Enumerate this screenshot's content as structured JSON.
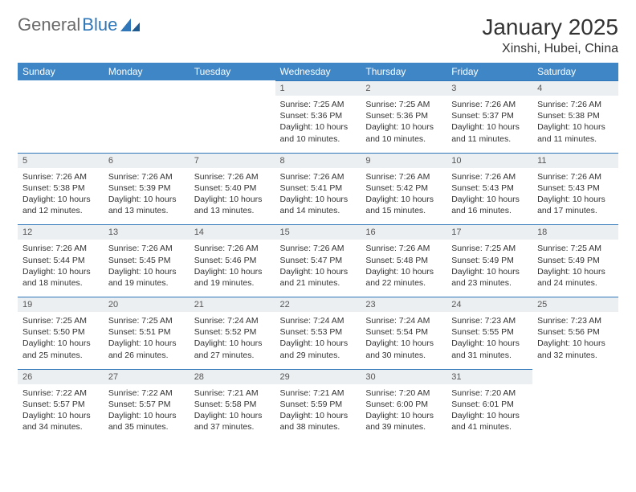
{
  "brand": {
    "name_a": "General",
    "name_b": "Blue"
  },
  "header": {
    "title": "January 2025",
    "location": "Xinshi, Hubei, China"
  },
  "colors": {
    "brand_gray": "#6a6a6a",
    "brand_blue": "#2f77b8",
    "dayhead_bg": "#3e86c6",
    "dayhead_fg": "#ffffff",
    "daynum_bg": "#eceff1",
    "daynum_fg": "#555555",
    "row_border": "#2f77b8",
    "text": "#333333",
    "background": "#ffffff"
  },
  "calendar": {
    "type": "table",
    "columns": [
      "Sunday",
      "Monday",
      "Tuesday",
      "Wednesday",
      "Thursday",
      "Friday",
      "Saturday"
    ],
    "weeks": [
      [
        null,
        null,
        null,
        {
          "n": "1",
          "sunrise": "7:25 AM",
          "sunset": "5:36 PM",
          "dlh": "10",
          "dlm": "10"
        },
        {
          "n": "2",
          "sunrise": "7:25 AM",
          "sunset": "5:36 PM",
          "dlh": "10",
          "dlm": "10"
        },
        {
          "n": "3",
          "sunrise": "7:26 AM",
          "sunset": "5:37 PM",
          "dlh": "10",
          "dlm": "11"
        },
        {
          "n": "4",
          "sunrise": "7:26 AM",
          "sunset": "5:38 PM",
          "dlh": "10",
          "dlm": "11"
        }
      ],
      [
        {
          "n": "5",
          "sunrise": "7:26 AM",
          "sunset": "5:38 PM",
          "dlh": "10",
          "dlm": "12"
        },
        {
          "n": "6",
          "sunrise": "7:26 AM",
          "sunset": "5:39 PM",
          "dlh": "10",
          "dlm": "13"
        },
        {
          "n": "7",
          "sunrise": "7:26 AM",
          "sunset": "5:40 PM",
          "dlh": "10",
          "dlm": "13"
        },
        {
          "n": "8",
          "sunrise": "7:26 AM",
          "sunset": "5:41 PM",
          "dlh": "10",
          "dlm": "14"
        },
        {
          "n": "9",
          "sunrise": "7:26 AM",
          "sunset": "5:42 PM",
          "dlh": "10",
          "dlm": "15"
        },
        {
          "n": "10",
          "sunrise": "7:26 AM",
          "sunset": "5:43 PM",
          "dlh": "10",
          "dlm": "16"
        },
        {
          "n": "11",
          "sunrise": "7:26 AM",
          "sunset": "5:43 PM",
          "dlh": "10",
          "dlm": "17"
        }
      ],
      [
        {
          "n": "12",
          "sunrise": "7:26 AM",
          "sunset": "5:44 PM",
          "dlh": "10",
          "dlm": "18"
        },
        {
          "n": "13",
          "sunrise": "7:26 AM",
          "sunset": "5:45 PM",
          "dlh": "10",
          "dlm": "19"
        },
        {
          "n": "14",
          "sunrise": "7:26 AM",
          "sunset": "5:46 PM",
          "dlh": "10",
          "dlm": "19"
        },
        {
          "n": "15",
          "sunrise": "7:26 AM",
          "sunset": "5:47 PM",
          "dlh": "10",
          "dlm": "21"
        },
        {
          "n": "16",
          "sunrise": "7:26 AM",
          "sunset": "5:48 PM",
          "dlh": "10",
          "dlm": "22"
        },
        {
          "n": "17",
          "sunrise": "7:25 AM",
          "sunset": "5:49 PM",
          "dlh": "10",
          "dlm": "23"
        },
        {
          "n": "18",
          "sunrise": "7:25 AM",
          "sunset": "5:49 PM",
          "dlh": "10",
          "dlm": "24"
        }
      ],
      [
        {
          "n": "19",
          "sunrise": "7:25 AM",
          "sunset": "5:50 PM",
          "dlh": "10",
          "dlm": "25"
        },
        {
          "n": "20",
          "sunrise": "7:25 AM",
          "sunset": "5:51 PM",
          "dlh": "10",
          "dlm": "26"
        },
        {
          "n": "21",
          "sunrise": "7:24 AM",
          "sunset": "5:52 PM",
          "dlh": "10",
          "dlm": "27"
        },
        {
          "n": "22",
          "sunrise": "7:24 AM",
          "sunset": "5:53 PM",
          "dlh": "10",
          "dlm": "29"
        },
        {
          "n": "23",
          "sunrise": "7:24 AM",
          "sunset": "5:54 PM",
          "dlh": "10",
          "dlm": "30"
        },
        {
          "n": "24",
          "sunrise": "7:23 AM",
          "sunset": "5:55 PM",
          "dlh": "10",
          "dlm": "31"
        },
        {
          "n": "25",
          "sunrise": "7:23 AM",
          "sunset": "5:56 PM",
          "dlh": "10",
          "dlm": "32"
        }
      ],
      [
        {
          "n": "26",
          "sunrise": "7:22 AM",
          "sunset": "5:57 PM",
          "dlh": "10",
          "dlm": "34"
        },
        {
          "n": "27",
          "sunrise": "7:22 AM",
          "sunset": "5:57 PM",
          "dlh": "10",
          "dlm": "35"
        },
        {
          "n": "28",
          "sunrise": "7:21 AM",
          "sunset": "5:58 PM",
          "dlh": "10",
          "dlm": "37"
        },
        {
          "n": "29",
          "sunrise": "7:21 AM",
          "sunset": "5:59 PM",
          "dlh": "10",
          "dlm": "38"
        },
        {
          "n": "30",
          "sunrise": "7:20 AM",
          "sunset": "6:00 PM",
          "dlh": "10",
          "dlm": "39"
        },
        {
          "n": "31",
          "sunrise": "7:20 AM",
          "sunset": "6:01 PM",
          "dlh": "10",
          "dlm": "41"
        },
        null
      ]
    ],
    "labels": {
      "sunrise": "Sunrise:",
      "sunset": "Sunset:",
      "daylight_prefix": "Daylight:",
      "hours_word": "hours",
      "and_word": "and",
      "minutes_word": "minutes."
    }
  }
}
